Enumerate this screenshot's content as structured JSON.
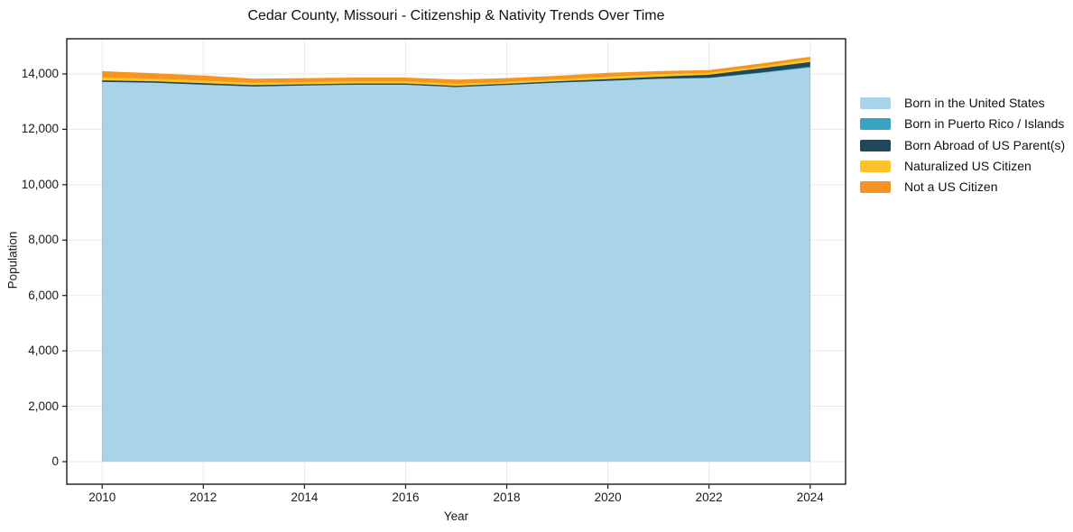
{
  "title": "Cedar County, Missouri - Citizenship & Nativity Trends Over Time",
  "x_axis": {
    "label": "Year",
    "ticks": [
      "2010",
      "2012",
      "2014",
      "2016",
      "2018",
      "2020",
      "2022",
      "2024"
    ]
  },
  "y_axis": {
    "label": "Population",
    "ticks": [
      "0",
      "2,000",
      "4,000",
      "6,000",
      "8,000",
      "10,000",
      "12,000",
      "14,000"
    ]
  },
  "legend": {
    "items": [
      {
        "label": "Born in the United States",
        "color": "#a8d3e8"
      },
      {
        "label": "Born in Puerto Rico / Islands",
        "color": "#3aa3c2"
      },
      {
        "label": "Born Abroad of US Parent(s)",
        "color": "#20485c"
      },
      {
        "label": "Naturalized US Citizen",
        "color": "#fdc328"
      },
      {
        "label": "Not a US Citizen",
        "color": "#f79420"
      }
    ]
  },
  "chart_data": {
    "type": "area",
    "stacked": true,
    "title": "Cedar County, Missouri - Citizenship & Nativity Trends Over Time",
    "xlabel": "Year",
    "ylabel": "Population",
    "x": [
      2010,
      2011,
      2012,
      2013,
      2014,
      2015,
      2016,
      2017,
      2018,
      2019,
      2020,
      2021,
      2022,
      2023,
      2024
    ],
    "series": [
      {
        "name": "Born in the United States",
        "color": "#a8d3e8",
        "values": [
          13710,
          13680,
          13610,
          13545,
          13580,
          13610,
          13610,
          13525,
          13600,
          13685,
          13750,
          13820,
          13850,
          14030,
          14230
        ]
      },
      {
        "name": "Born in Puerto Rico / Islands",
        "color": "#3aa3c2",
        "values": [
          0,
          0,
          0,
          0,
          0,
          0,
          0,
          0,
          0,
          5,
          5,
          10,
          15,
          20,
          35
        ]
      },
      {
        "name": "Born Abroad of US Parent(s)",
        "color": "#20485c",
        "values": [
          60,
          55,
          55,
          50,
          45,
          45,
          45,
          45,
          45,
          45,
          55,
          70,
          105,
          145,
          165
        ]
      },
      {
        "name": "Naturalized US Citizen",
        "color": "#fdc328",
        "values": [
          100,
          100,
          95,
          85,
          85,
          80,
          80,
          80,
          75,
          75,
          95,
          95,
          75,
          75,
          100
        ]
      },
      {
        "name": "Not a US Citizen",
        "color": "#f79420",
        "values": [
          230,
          195,
          180,
          150,
          140,
          135,
          135,
          145,
          130,
          125,
          135,
          105,
          95,
          100,
          90
        ]
      }
    ],
    "xticks": [
      2010,
      2012,
      2014,
      2016,
      2018,
      2020,
      2022,
      2024
    ],
    "yticks": [
      0,
      2000,
      4000,
      6000,
      8000,
      10000,
      12000,
      14000
    ],
    "xlim": [
      2009.3,
      2024.7
    ],
    "ylim": [
      -815,
      15270
    ],
    "grid": true,
    "legend_position": "right"
  },
  "style": {
    "grid_color": "#e9e9e9",
    "spine_color": "#1a1a1a",
    "background": "#ffffff"
  }
}
